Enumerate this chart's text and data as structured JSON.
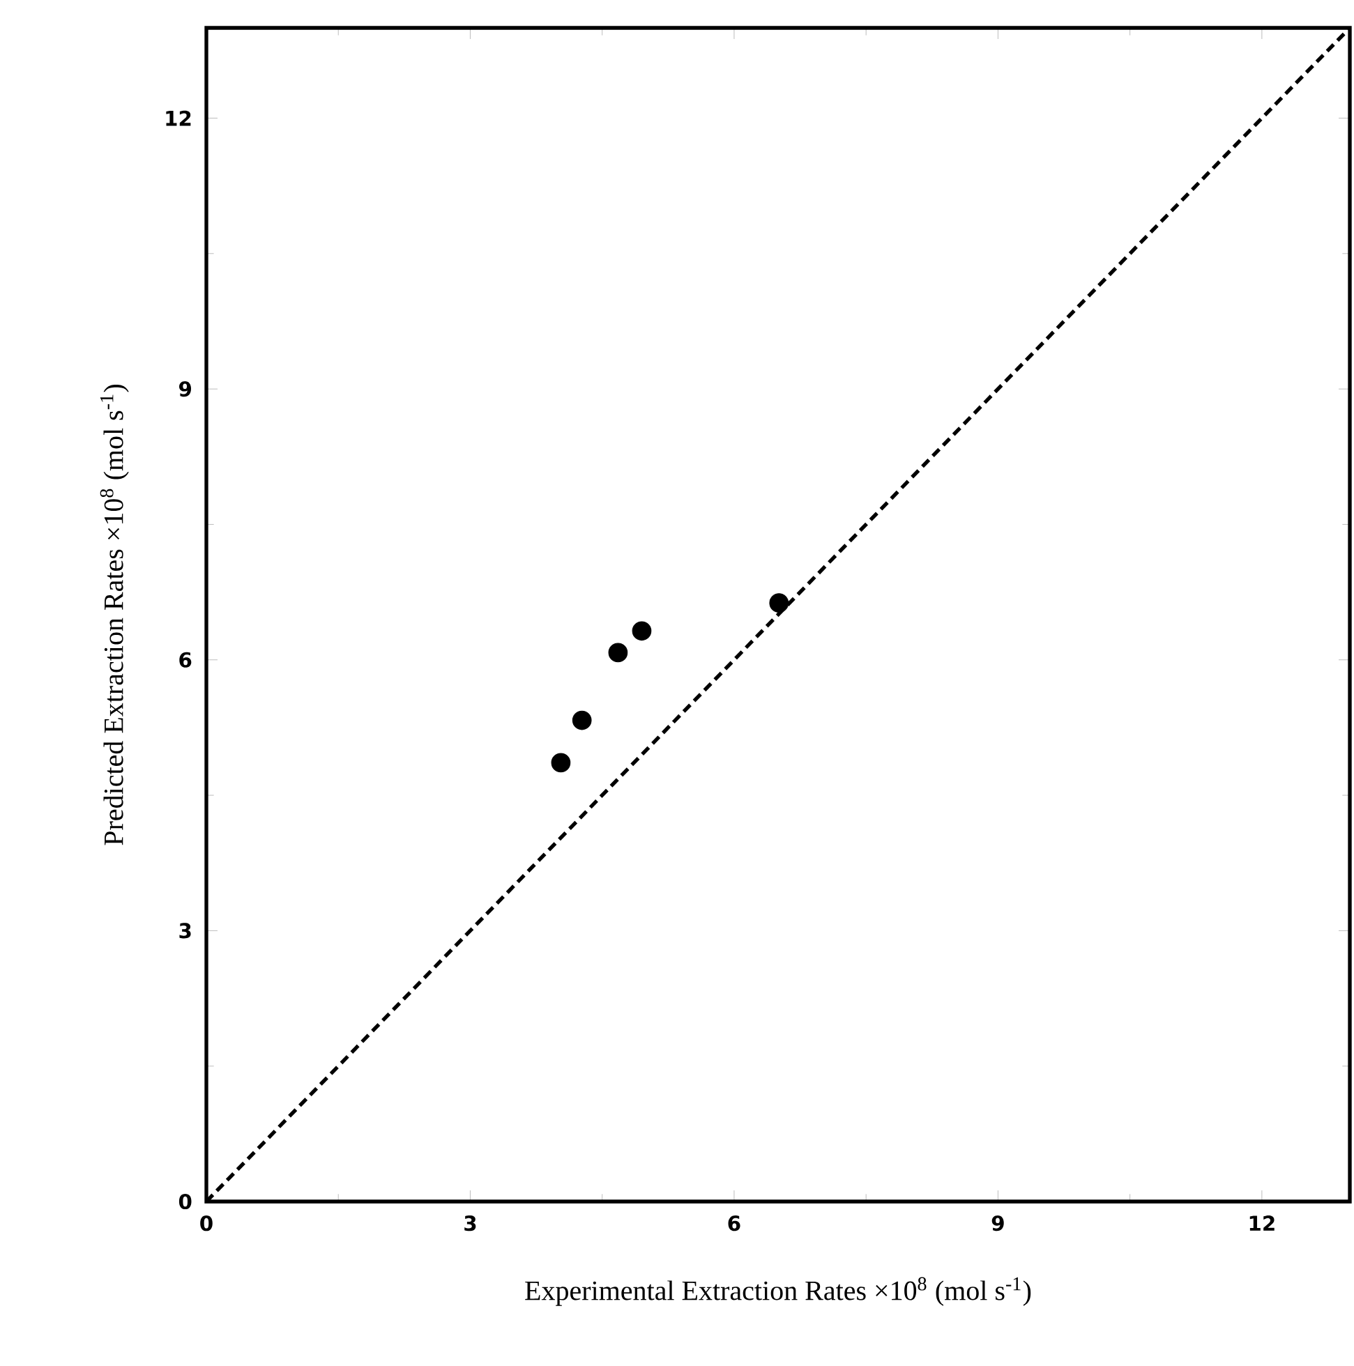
{
  "chart_data": {
    "type": "scatter",
    "xlabel": "Experimental Extraction Rates      ×10$^{8}$  (mol s$^{-1}$)",
    "ylabel": "Predicted Extraction Rates  ×10$^{8}$  (mol s$^{-1}$)",
    "xlim": [
      0,
      13
    ],
    "ylim": [
      0,
      13
    ],
    "xticks": [
      0,
      3,
      6,
      9,
      12
    ],
    "yticks": [
      0,
      3,
      6,
      9,
      12
    ],
    "series": [
      {
        "marker": "circle",
        "color": "#000000",
        "x": [
          4.03,
          4.27,
          4.68,
          4.95,
          6.51
        ],
        "values": [
          4.86,
          5.33,
          6.08,
          6.32,
          6.63
        ]
      },
      {
        "type": "line",
        "marker": "none",
        "color": "#000000",
        "line_style": "dashed",
        "x": [
          0,
          13
        ],
        "values": [
          0,
          13
        ]
      }
    ]
  }
}
